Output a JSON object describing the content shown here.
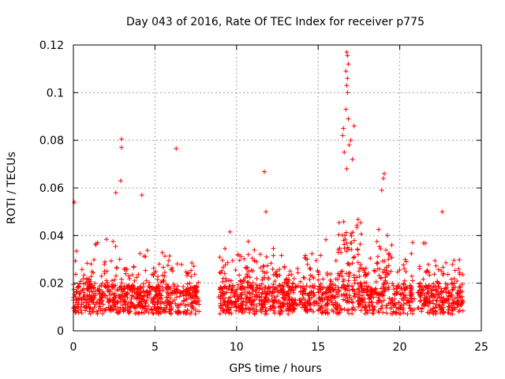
{
  "chart_data": {
    "type": "scatter",
    "title": "Day 043 of 2016, Rate Of TEC Index for receiver p775",
    "xlabel": "GPS time / hours",
    "ylabel": "ROTI / TECUs",
    "xlim": [
      0,
      25
    ],
    "ylim": [
      0,
      0.12
    ],
    "xticks": [
      0,
      5,
      10,
      15,
      20,
      25
    ],
    "xtick_labels": [
      "0",
      "5",
      "10",
      "15",
      "20",
      "25"
    ],
    "yticks": [
      0,
      0.02,
      0.04,
      0.06,
      0.08,
      0.1,
      0.12
    ],
    "ytick_labels": [
      "0",
      "0.02",
      "0.04",
      "0.06",
      "0.08",
      "0.1",
      "0.12"
    ],
    "grid": true,
    "marker": "plus",
    "series_color": "#ff0000",
    "segments": [
      {
        "start": 0.0,
        "end": 7.7
      },
      {
        "start": 8.9,
        "end": 20.9
      },
      {
        "start": 21.1,
        "end": 23.9
      }
    ],
    "outliers": [
      {
        "x": 2.95,
        "y": 0.0805
      },
      {
        "x": 2.95,
        "y": 0.077
      },
      {
        "x": 2.9,
        "y": 0.063
      },
      {
        "x": 6.3,
        "y": 0.0765
      },
      {
        "x": 11.7,
        "y": 0.0668
      },
      {
        "x": 16.75,
        "y": 0.117
      },
      {
        "x": 16.8,
        "y": 0.1155
      },
      {
        "x": 16.85,
        "y": 0.112
      },
      {
        "x": 16.7,
        "y": 0.109
      },
      {
        "x": 16.8,
        "y": 0.106
      },
      {
        "x": 16.75,
        "y": 0.103
      },
      {
        "x": 16.8,
        "y": 0.1
      },
      {
        "x": 16.7,
        "y": 0.093
      },
      {
        "x": 16.85,
        "y": 0.089
      },
      {
        "x": 16.55,
        "y": 0.085
      },
      {
        "x": 17.2,
        "y": 0.086
      },
      {
        "x": 16.5,
        "y": 0.082
      },
      {
        "x": 17.0,
        "y": 0.08
      },
      {
        "x": 16.9,
        "y": 0.078
      },
      {
        "x": 16.6,
        "y": 0.075
      },
      {
        "x": 17.1,
        "y": 0.072
      },
      {
        "x": 16.75,
        "y": 0.068
      },
      {
        "x": 19.05,
        "y": 0.066
      },
      {
        "x": 19.0,
        "y": 0.064
      },
      {
        "x": 18.9,
        "y": 0.059
      },
      {
        "x": 4.2,
        "y": 0.057
      },
      {
        "x": 2.6,
        "y": 0.058
      },
      {
        "x": 0.05,
        "y": 0.054
      },
      {
        "x": 11.8,
        "y": 0.05
      },
      {
        "x": 22.6,
        "y": 0.05
      }
    ]
  }
}
